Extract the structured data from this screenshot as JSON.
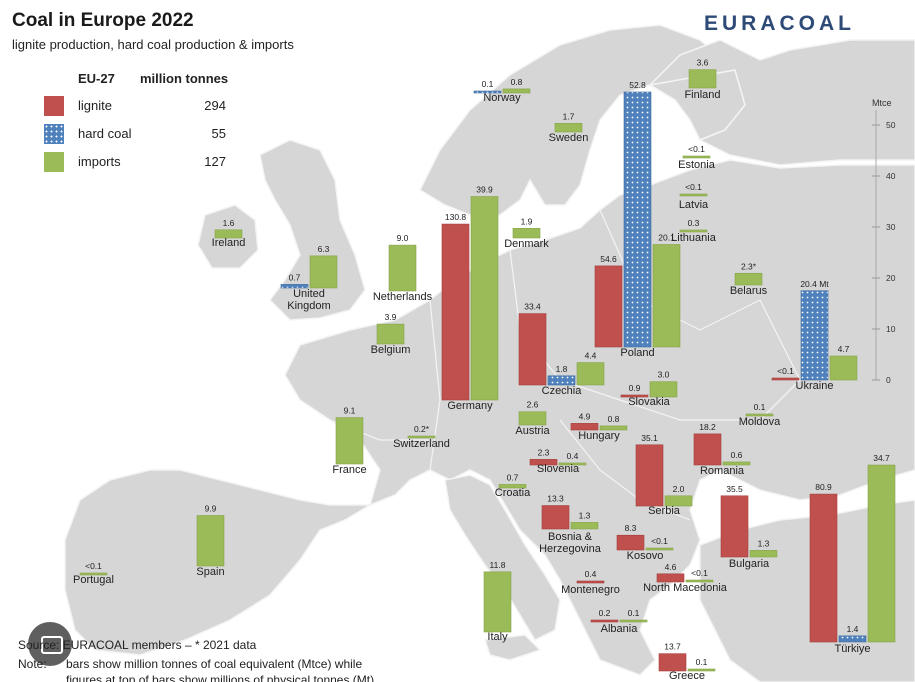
{
  "header": {
    "title": "Coal in Europe 2022",
    "subtitle": "lignite production, hard coal production & imports",
    "brand": "EURACOAL"
  },
  "legend": {
    "group": "EU-27",
    "unit": "million tonnes",
    "items": [
      {
        "label": "lignite",
        "value": "294"
      },
      {
        "label": "hard coal",
        "value": "55"
      },
      {
        "label": "imports",
        "value": "127"
      }
    ]
  },
  "scale": {
    "unit": "Mtce",
    "ticks": [
      "0",
      "10",
      "20",
      "30",
      "40",
      "50"
    ]
  },
  "footer": {
    "source": "Source: EURACOAL members  –  * 2021 data",
    "note_label": "Note:",
    "note": "bars show million tonnes of coal equivalent (Mtce) while",
    "note2": "figures at top of bars show millions of physical tonnes (Mt)"
  },
  "colors": {
    "lignite": "#c0504d",
    "hard_coal": "#4f81bd",
    "imports": "#9bbb59",
    "land": "#d6d6d6",
    "sea": "#ffffff",
    "border": "#f2f2f2"
  },
  "chart_data": {
    "type": "bar",
    "title": "Coal in Europe 2022",
    "subtitle": "lignite production, hard coal production & imports",
    "unit": "Mtce",
    "ylim": [
      0,
      50
    ],
    "series_names": [
      "lignite",
      "hard coal",
      "imports"
    ],
    "countries": [
      {
        "name": "Norway",
        "bars": [
          {
            "series": "hard coal",
            "mtce": 0.1,
            "label": "0.1"
          },
          {
            "series": "imports",
            "mtce": 0.8,
            "label": "0.8"
          }
        ]
      },
      {
        "name": "Finland",
        "bars": [
          {
            "series": "imports",
            "mtce": 3.6,
            "label": "3.6"
          }
        ]
      },
      {
        "name": "Sweden",
        "bars": [
          {
            "series": "imports",
            "mtce": 1.7,
            "label": "1.7"
          }
        ]
      },
      {
        "name": "Estonia",
        "bars": [
          {
            "series": "imports",
            "mtce": 0.1,
            "label": "<0.1"
          }
        ]
      },
      {
        "name": "Latvia",
        "bars": [
          {
            "series": "imports",
            "mtce": 0.05,
            "label": "<0.1"
          }
        ]
      },
      {
        "name": "Lithuania",
        "bars": [
          {
            "series": "imports",
            "mtce": 0.3,
            "label": "0.3"
          }
        ]
      },
      {
        "name": "Ireland",
        "bars": [
          {
            "series": "imports",
            "mtce": 1.6,
            "label": "1.6"
          }
        ]
      },
      {
        "name": "Denmark",
        "bars": [
          {
            "series": "imports",
            "mtce": 1.9,
            "label": "1.9"
          }
        ]
      },
      {
        "name": "United Kingdom",
        "bars": [
          {
            "series": "hard coal",
            "mtce": 0.7,
            "label": "0.7"
          },
          {
            "series": "imports",
            "mtce": 6.3,
            "label": "6.3"
          }
        ]
      },
      {
        "name": "Netherlands",
        "bars": [
          {
            "series": "imports",
            "mtce": 9.0,
            "label": "9.0"
          }
        ]
      },
      {
        "name": "Belgium",
        "bars": [
          {
            "series": "imports",
            "mtce": 3.9,
            "label": "3.9"
          }
        ]
      },
      {
        "name": "Germany",
        "bars": [
          {
            "series": "lignite",
            "mtce": 34.5,
            "label": "130.8"
          },
          {
            "series": "imports",
            "mtce": 39.9,
            "label": "39.9"
          }
        ]
      },
      {
        "name": "Poland",
        "bars": [
          {
            "series": "lignite",
            "mtce": 15.9,
            "label": "54.6"
          },
          {
            "series": "hard coal",
            "mtce": 50.0,
            "label": "52.8"
          },
          {
            "series": "imports",
            "mtce": 20.1,
            "label": "20.1"
          }
        ]
      },
      {
        "name": "Belarus",
        "bars": [
          {
            "series": "imports",
            "mtce": 2.3,
            "label": "2.3*"
          }
        ]
      },
      {
        "name": "Ukraine",
        "bars": [
          {
            "series": "lignite",
            "mtce": 0.05,
            "label": "<0.1"
          },
          {
            "series": "hard coal",
            "mtce": 17.5,
            "label": "20.4 Mt"
          },
          {
            "series": "imports",
            "mtce": 4.7,
            "label": "4.7"
          }
        ]
      },
      {
        "name": "Czechia",
        "bars": [
          {
            "series": "lignite",
            "mtce": 14.0,
            "label": "33.4"
          },
          {
            "series": "hard coal",
            "mtce": 1.8,
            "label": "1.8"
          },
          {
            "series": "imports",
            "mtce": 4.4,
            "label": "4.4"
          }
        ]
      },
      {
        "name": "Slovakia",
        "bars": [
          {
            "series": "lignite",
            "mtce": 0.3,
            "label": "0.9"
          },
          {
            "series": "imports",
            "mtce": 3.0,
            "label": "3.0"
          }
        ]
      },
      {
        "name": "France",
        "bars": [
          {
            "series": "imports",
            "mtce": 9.1,
            "label": "9.1"
          }
        ]
      },
      {
        "name": "Switzerland",
        "bars": [
          {
            "series": "imports",
            "mtce": 0.2,
            "label": "0.2*"
          }
        ]
      },
      {
        "name": "Austria",
        "bars": [
          {
            "series": "imports",
            "mtce": 2.6,
            "label": "2.6"
          }
        ]
      },
      {
        "name": "Hungary",
        "bars": [
          {
            "series": "lignite",
            "mtce": 1.3,
            "label": "4.9"
          },
          {
            "series": "imports",
            "mtce": 0.8,
            "label": "0.8"
          }
        ]
      },
      {
        "name": "Moldova",
        "bars": [
          {
            "series": "imports",
            "mtce": 0.1,
            "label": "0.1"
          }
        ]
      },
      {
        "name": "Slovenia",
        "bars": [
          {
            "series": "lignite",
            "mtce": 1.1,
            "label": "2.3"
          },
          {
            "series": "imports",
            "mtce": 0.4,
            "label": "0.4"
          }
        ]
      },
      {
        "name": "Romania",
        "bars": [
          {
            "series": "lignite",
            "mtce": 6.1,
            "label": "18.2"
          },
          {
            "series": "imports",
            "mtce": 0.6,
            "label": "0.6"
          }
        ]
      },
      {
        "name": "Croatia",
        "bars": [
          {
            "series": "imports",
            "mtce": 0.7,
            "label": "0.7"
          }
        ]
      },
      {
        "name": "Serbia",
        "bars": [
          {
            "series": "lignite",
            "mtce": 12.0,
            "label": "35.1"
          },
          {
            "series": "imports",
            "mtce": 2.0,
            "label": "2.0"
          }
        ]
      },
      {
        "name": "Bosnia & Herzegovina",
        "bars": [
          {
            "series": "lignite",
            "mtce": 4.6,
            "label": "13.3"
          },
          {
            "series": "imports",
            "mtce": 1.3,
            "label": "1.3"
          }
        ]
      },
      {
        "name": "Kosovo",
        "bars": [
          {
            "series": "lignite",
            "mtce": 2.9,
            "label": "8.3"
          },
          {
            "series": "imports",
            "mtce": 0.05,
            "label": "<0.1"
          }
        ]
      },
      {
        "name": "Bulgaria",
        "bars": [
          {
            "series": "lignite",
            "mtce": 12.0,
            "label": "35.5"
          },
          {
            "series": "imports",
            "mtce": 1.3,
            "label": "1.3"
          }
        ]
      },
      {
        "name": "Portugal",
        "bars": [
          {
            "series": "imports",
            "mtce": 0.05,
            "label": "<0.1"
          }
        ]
      },
      {
        "name": "Spain",
        "bars": [
          {
            "series": "imports",
            "mtce": 9.9,
            "label": "9.9"
          }
        ]
      },
      {
        "name": "Montenegro",
        "bars": [
          {
            "series": "lignite",
            "mtce": 0.15,
            "label": "0.4"
          }
        ]
      },
      {
        "name": "North Macedonia",
        "bars": [
          {
            "series": "lignite",
            "mtce": 1.6,
            "label": "4.6"
          },
          {
            "series": "imports",
            "mtce": 0.05,
            "label": "<0.1"
          }
        ]
      },
      {
        "name": "Italy",
        "bars": [
          {
            "series": "imports",
            "mtce": 11.8,
            "label": "11.8"
          }
        ]
      },
      {
        "name": "Albania",
        "bars": [
          {
            "series": "lignite",
            "mtce": 0.1,
            "label": "0.2"
          },
          {
            "series": "imports",
            "mtce": 0.1,
            "label": "0.1"
          }
        ]
      },
      {
        "name": "Türkiye",
        "bars": [
          {
            "series": "lignite",
            "mtce": 29.0,
            "label": "80.9"
          },
          {
            "series": "hard coal",
            "mtce": 1.2,
            "label": "1.4"
          },
          {
            "series": "imports",
            "mtce": 34.7,
            "label": "34.7"
          }
        ]
      },
      {
        "name": "Greece",
        "bars": [
          {
            "series": "lignite",
            "mtce": 3.4,
            "label": "13.7"
          },
          {
            "series": "imports",
            "mtce": 0.1,
            "label": "0.1"
          }
        ]
      }
    ]
  }
}
